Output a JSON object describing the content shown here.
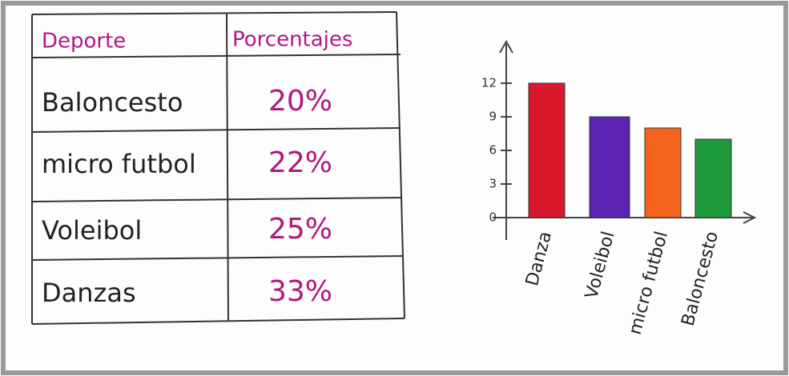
{
  "table": {
    "header": [
      "Deporte",
      "Porcentajes"
    ],
    "rows": [
      [
        "Baloncesto",
        "20%"
      ],
      [
        "micro futbol",
        "22%"
      ],
      [
        "Voleibol",
        "25%"
      ],
      [
        "Danzas",
        "33%"
      ]
    ]
  },
  "chart_data": {
    "type": "bar",
    "categories": [
      "Danza",
      "Voleibol",
      "micro futbol",
      "Baloncesto"
    ],
    "series": [
      {
        "values": [
          12,
          9,
          8,
          7
        ]
      }
    ],
    "colors": [
      "#d8192c",
      "#5b24b3",
      "#f5641f",
      "#1e9a3c"
    ],
    "ylim": [
      0,
      15
    ],
    "yticks": [
      0,
      3,
      6,
      9,
      12
    ]
  }
}
